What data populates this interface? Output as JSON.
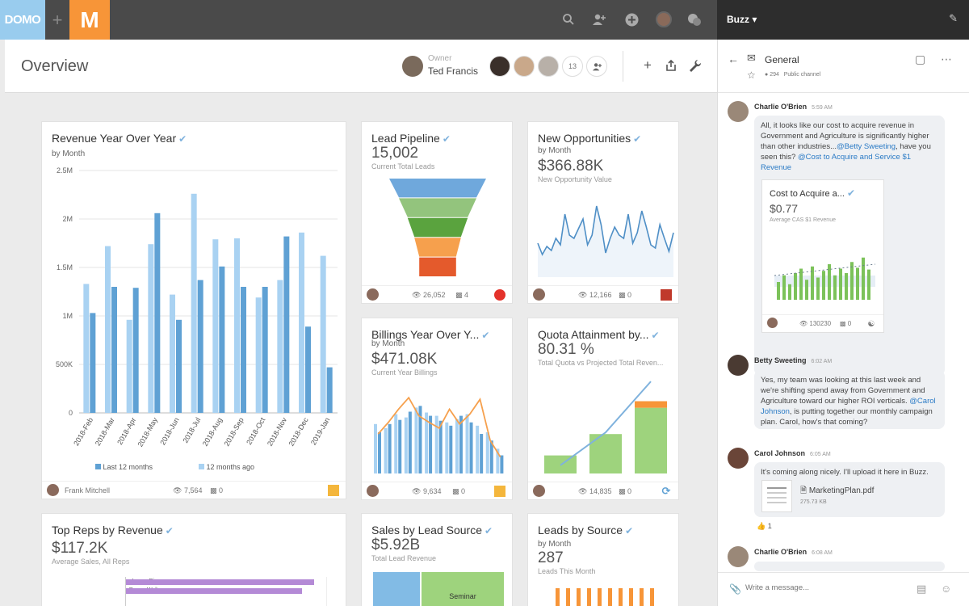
{
  "nav": {
    "logo": "DOMO",
    "plus": "+",
    "app_logo": "M",
    "icons": [
      "search-icon",
      "add-person-icon",
      "add-circle-icon",
      "user-avatar",
      "chat-bubble-icon"
    ]
  },
  "header": {
    "title": "Overview",
    "owner_label": "Owner",
    "owner_name": "Ted Francis",
    "share_count": "13"
  },
  "cards": {
    "revenue": {
      "title": "Revenue Year Over Year",
      "subtitle": "by Month",
      "legend_a": "Last 12 months",
      "legend_b": "12 months ago",
      "owner": "Frank Mitchell",
      "views": "7,564",
      "comments": "0"
    },
    "lead_pipeline": {
      "title": "Lead Pipeline",
      "value": "15,002",
      "caption": "Current Total Leads",
      "views": "26,052",
      "comments": "4"
    },
    "new_opps": {
      "title": "New Opportunities",
      "subtitle": "by Month",
      "value": "$366.88K",
      "caption": "New Opportunity Value",
      "views": "12,166",
      "comments": "0"
    },
    "billings": {
      "title": "Billings Year Over Y...",
      "subtitle": "by Month",
      "value": "$471.08K",
      "caption": "Current Year Billings",
      "views": "9,634",
      "comments": "0"
    },
    "quota": {
      "title": "Quota Attainment by...",
      "value": "80.31 %",
      "caption": "Total Quota vs Projected Total Reven...",
      "views": "14,835",
      "comments": "0"
    },
    "top_reps": {
      "title": "Top Reps by Revenue",
      "value": "$117.2K",
      "caption": "Average Sales, All Reps",
      "reps": [
        "Lance Rivas",
        "Reese Walter"
      ]
    },
    "sales_lead": {
      "title": "Sales by Lead Source",
      "value": "$5.92B",
      "caption": "Total Lead Revenue",
      "segment_label": "Seminar"
    },
    "leads_source": {
      "title": "Leads by Source",
      "subtitle": "by Month",
      "value": "287",
      "caption": "Leads This Month"
    }
  },
  "chart_data": [
    {
      "type": "bar",
      "title": "Revenue Year Over Year",
      "categories": [
        "2018-Feb",
        "2018-Mar",
        "2018-Apr",
        "2018-May",
        "2018-Jun",
        "2018-Jul",
        "2018-Aug",
        "2018-Sep",
        "2018-Oct",
        "2018-Nov",
        "2018-Dec",
        "2019-Jan"
      ],
      "series": [
        {
          "name": "12 months ago",
          "color": "#a9d2f2",
          "values": [
            1330000,
            1720000,
            960000,
            1740000,
            1220000,
            2260000,
            1790000,
            1800000,
            1190000,
            1370000,
            1860000,
            1620000
          ]
        },
        {
          "name": "Last 12 months",
          "color": "#5fa1d4",
          "values": [
            1030000,
            1300000,
            1290000,
            2060000,
            960000,
            1370000,
            1510000,
            1300000,
            1300000,
            1820000,
            890000,
            470000
          ]
        }
      ],
      "yticks": [
        "0",
        "500K",
        "1M",
        "1.5M",
        "2M",
        "2.5M"
      ],
      "ylim": [
        0,
        2500000
      ],
      "grid": true,
      "legend": "bottom"
    },
    {
      "type": "funnel",
      "title": "Lead Pipeline",
      "stages": [
        {
          "color": "#6fa8dc",
          "value": 100
        },
        {
          "color": "#93c47d",
          "value": 80
        },
        {
          "color": "#5aa33e",
          "value": 62
        },
        {
          "color": "#f6a04d",
          "value": 48
        },
        {
          "color": "#e45a2c",
          "value": 38
        }
      ]
    },
    {
      "type": "area",
      "title": "New Opportunities",
      "values": [
        42,
        28,
        38,
        33,
        48,
        40,
        78,
        52,
        48,
        60,
        72,
        40,
        52,
        88,
        65,
        30,
        48,
        62,
        52,
        48,
        78,
        42,
        55,
        82,
        62,
        40,
        36,
        65,
        48,
        32,
        55
      ]
    },
    {
      "type": "bar",
      "title": "Billings Year Over Year",
      "series": [
        {
          "name": "bars-a",
          "color": "#a9d2f2",
          "values": [
            60,
            55,
            72,
            68,
            80,
            74,
            70,
            62,
            66,
            72,
            58,
            50,
            30
          ]
        },
        {
          "name": "bars-b",
          "color": "#5fa1d4",
          "values": [
            50,
            60,
            65,
            75,
            82,
            70,
            64,
            58,
            70,
            62,
            48,
            40,
            22
          ]
        },
        {
          "name": "line",
          "color": "#f6a04d",
          "values": [
            48,
            62,
            78,
            92,
            70,
            62,
            55,
            78,
            60,
            72,
            90,
            40,
            20
          ]
        }
      ]
    },
    {
      "type": "bar",
      "title": "Quota Attainment",
      "values": [
        22,
        48,
        80
      ],
      "overflow": [
        0,
        0,
        8
      ],
      "line": [
        10,
        50,
        112
      ]
    }
  ],
  "buzz": {
    "title": "Buzz",
    "channel": "General",
    "members": "294",
    "visibility": "Public channel",
    "messages": [
      {
        "author": "Charlie O'Brien",
        "time": "5:59 AM",
        "text_1": "All, it looks like our cost to acquire revenue in Government and Agriculture is significantly higher than other industries...",
        "mention_1": "@Betty Sweeting",
        "text_2": ", have you seen this?",
        "mention_2": "@Cost to Acquire and Service $1 Revenue"
      },
      {
        "author": "Betty Sweeting",
        "time": "6:02 AM",
        "text_1": "Yes, my team was looking at this last week and we're shifting spend away from Government and Agriculture toward our higher ROI verticals.",
        "mention_1": "@Carol Johnson",
        "text_2": ", is putting together our monthly campaign plan. Carol, how's that coming?"
      },
      {
        "author": "Carol Johnson",
        "time": "6:05 AM",
        "text_1": "It's coming along nicely. I'll upload it here in Buzz.",
        "file_name": "MarketingPlan.pdf",
        "file_size": "275.73 KB",
        "reaction": "1"
      },
      {
        "author": "Charlie O'Brien",
        "time": "6:08 AM"
      }
    ],
    "mini_card": {
      "title": "Cost to Acquire a...",
      "value": "$0.77",
      "caption": "Average CAS $1 Revenue",
      "views": "130230",
      "comments": "0"
    },
    "compose_placeholder": "Write a message..."
  }
}
